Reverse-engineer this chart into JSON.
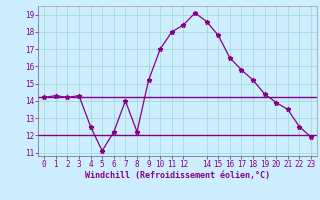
{
  "xlabel": "Windchill (Refroidissement éolien,°C)",
  "bg_color": "#cceeff",
  "grid_color": "#aadddd",
  "line_color": "#880088",
  "x": [
    0,
    1,
    2,
    3,
    4,
    5,
    6,
    7,
    8,
    9,
    10,
    11,
    12,
    13,
    14,
    15,
    16,
    17,
    18,
    19,
    20,
    21,
    22,
    23
  ],
  "y_main": [
    14.2,
    14.3,
    14.2,
    14.3,
    12.5,
    11.1,
    12.2,
    14.0,
    12.2,
    15.2,
    17.0,
    18.0,
    18.4,
    19.1,
    18.6,
    17.8,
    16.5,
    15.8,
    15.2,
    14.4,
    13.9,
    13.5,
    12.5,
    11.9
  ],
  "y_flat_high": 14.2,
  "y_flat_low": 12.0,
  "ylim": [
    10.8,
    19.5
  ],
  "xlim": [
    -0.5,
    23.5
  ],
  "yticks": [
    11,
    12,
    13,
    14,
    15,
    16,
    17,
    18,
    19
  ],
  "xticks": [
    0,
    1,
    2,
    3,
    4,
    5,
    6,
    7,
    8,
    9,
    10,
    11,
    12,
    14,
    15,
    16,
    17,
    18,
    19,
    20,
    21,
    22,
    23
  ],
  "tick_fontsize": 5.5,
  "xlabel_fontsize": 6.0
}
